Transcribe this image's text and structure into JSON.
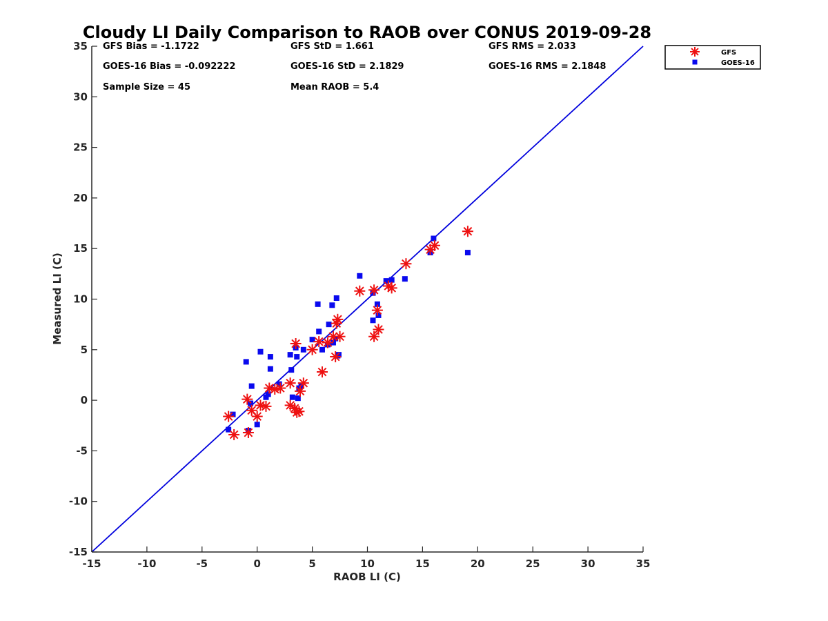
{
  "chart_data": {
    "type": "scatter",
    "title": "Cloudy LI Daily Comparison to RAOB over CONUS 2019-09-28",
    "xlabel": "RAOB LI (C)",
    "ylabel": "Measured LI (C)",
    "xlim": [
      -15,
      35
    ],
    "ylim": [
      -15,
      35
    ],
    "xticks": [
      -15,
      -10,
      -5,
      0,
      5,
      10,
      15,
      20,
      25,
      30,
      35
    ],
    "yticks": [
      -15,
      -10,
      -5,
      0,
      5,
      10,
      15,
      20,
      25,
      30,
      35
    ],
    "grid": false,
    "legend_position": "outside-top-right",
    "reference_line": {
      "from": [
        -15,
        -15
      ],
      "to": [
        35,
        35
      ],
      "color": "#0000dd"
    },
    "stats": [
      {
        "label": "GFS Bias = -1.1722"
      },
      {
        "label": "GFS StD = 1.661"
      },
      {
        "label": "GFS RMS = 2.033"
      },
      {
        "label": "GOES-16 Bias = -0.092222"
      },
      {
        "label": "GOES-16 StD = 2.1829"
      },
      {
        "label": "GOES-16 RMS = 2.1848"
      },
      {
        "label": "Sample Size = 45"
      },
      {
        "label": "Mean RAOB = 5.4"
      }
    ],
    "series": [
      {
        "name": "GFS",
        "marker": "asterisk",
        "color": "#ee1111",
        "points": [
          [
            -2.6,
            -1.6
          ],
          [
            -2.1,
            -3.4
          ],
          [
            -0.9,
            0.1
          ],
          [
            -0.8,
            -3.2
          ],
          [
            -0.5,
            -1.0
          ],
          [
            0.0,
            -1.6
          ],
          [
            0.3,
            -0.5
          ],
          [
            0.8,
            -0.6
          ],
          [
            1.1,
            1.2
          ],
          [
            1.6,
            1.1
          ],
          [
            2.1,
            1.2
          ],
          [
            3.0,
            1.7
          ],
          [
            3.0,
            -0.5
          ],
          [
            3.4,
            -0.8
          ],
          [
            3.6,
            -1.2
          ],
          [
            3.8,
            -1.1
          ],
          [
            3.9,
            0.9
          ],
          [
            4.2,
            1.7
          ],
          [
            3.5,
            5.6
          ],
          [
            5.0,
            5.0
          ],
          [
            5.6,
            5.8
          ],
          [
            5.9,
            2.8
          ],
          [
            6.4,
            5.7
          ],
          [
            6.9,
            6.3
          ],
          [
            7.1,
            4.3
          ],
          [
            7.2,
            7.6
          ],
          [
            7.3,
            8.0
          ],
          [
            7.5,
            6.3
          ],
          [
            9.3,
            10.8
          ],
          [
            10.6,
            10.9
          ],
          [
            10.6,
            6.3
          ],
          [
            10.9,
            8.9
          ],
          [
            11.0,
            7.0
          ],
          [
            11.9,
            11.3
          ],
          [
            12.2,
            11.1
          ],
          [
            13.5,
            13.5
          ],
          [
            15.7,
            14.9
          ],
          [
            16.1,
            15.3
          ],
          [
            19.1,
            16.7
          ]
        ]
      },
      {
        "name": "GOES-16",
        "marker": "square",
        "color": "#0a0aee",
        "points": [
          [
            -2.6,
            -2.9
          ],
          [
            -2.2,
            -1.4
          ],
          [
            -1.0,
            3.8
          ],
          [
            -0.8,
            -3.0
          ],
          [
            -0.6,
            -0.3
          ],
          [
            -0.5,
            1.4
          ],
          [
            0.0,
            -2.4
          ],
          [
            0.3,
            4.8
          ],
          [
            0.8,
            0.3
          ],
          [
            1.0,
            0.6
          ],
          [
            1.2,
            3.1
          ],
          [
            1.2,
            4.3
          ],
          [
            2.0,
            1.6
          ],
          [
            3.0,
            4.5
          ],
          [
            3.1,
            3.0
          ],
          [
            3.2,
            0.3
          ],
          [
            3.5,
            5.2
          ],
          [
            3.6,
            4.3
          ],
          [
            3.7,
            0.2
          ],
          [
            3.8,
            1.2
          ],
          [
            4.0,
            1.4
          ],
          [
            4.2,
            5.0
          ],
          [
            5.0,
            6.0
          ],
          [
            5.5,
            9.5
          ],
          [
            5.6,
            6.8
          ],
          [
            5.9,
            5.0
          ],
          [
            6.4,
            5.5
          ],
          [
            6.5,
            7.5
          ],
          [
            6.8,
            9.4
          ],
          [
            6.9,
            5.7
          ],
          [
            7.1,
            6.1
          ],
          [
            7.2,
            10.1
          ],
          [
            7.3,
            4.4
          ],
          [
            7.4,
            4.5
          ],
          [
            9.3,
            12.3
          ],
          [
            10.5,
            10.6
          ],
          [
            10.5,
            7.9
          ],
          [
            10.9,
            9.5
          ],
          [
            11.0,
            8.4
          ],
          [
            11.7,
            11.8
          ],
          [
            12.2,
            11.9
          ],
          [
            13.4,
            12.0
          ],
          [
            15.7,
            14.6
          ],
          [
            16.0,
            16.0
          ],
          [
            19.1,
            14.6
          ]
        ]
      }
    ]
  }
}
